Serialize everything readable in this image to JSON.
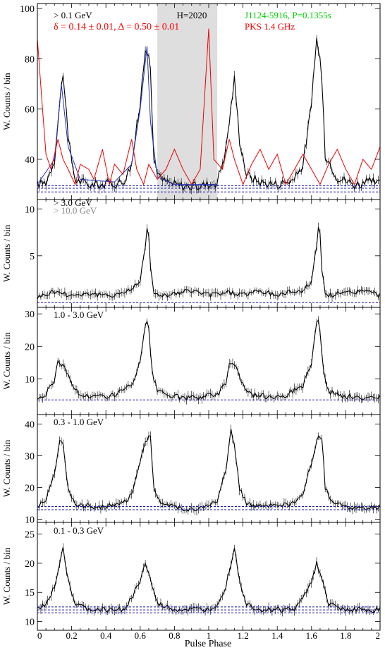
{
  "figure": {
    "x_axis_label": "Pulse Phase",
    "x_ticks": [
      "0",
      "0.2",
      "0.4",
      "0.6",
      "0.8",
      "1",
      "1.2",
      "1.4",
      "1.6",
      "1.8",
      "2"
    ]
  },
  "chart_data": [
    {
      "type": "line",
      "ylabel": "W. Counts / bin",
      "xlim": [
        0,
        2
      ],
      "ylim": [
        24,
        102
      ],
      "yticks": [
        40,
        60,
        80,
        100
      ],
      "ytick_labels": [
        "40",
        "60",
        "80",
        "100"
      ],
      "labels": [
        {
          "text": "> 0.1 GeV",
          "color": "#000000"
        },
        {
          "text": "δ = 0.14 ± 0.01, Δ = 0.50 ± 0.01",
          "color": "#ff0000"
        },
        {
          "text": "H=2020",
          "color": "#000000"
        },
        {
          "text": "J1124-5916, P=0.1355s",
          "color": "#00cc00"
        },
        {
          "text": "PKS 1.4 GHz",
          "color": "#ff0000"
        }
      ],
      "shaded_phase": [
        0.7,
        1.05
      ],
      "background_levels": [
        27,
        28.5,
        29.5
      ],
      "series": [
        {
          "color": "#000000",
          "points": [
            [
              0,
              30
            ],
            [
              0.05,
              31
            ],
            [
              0.1,
              40
            ],
            [
              0.13,
              62
            ],
            [
              0.15,
              75
            ],
            [
              0.18,
              48
            ],
            [
              0.22,
              32
            ],
            [
              0.3,
              30
            ],
            [
              0.4,
              30
            ],
            [
              0.5,
              31
            ],
            [
              0.55,
              38
            ],
            [
              0.6,
              62
            ],
            [
              0.63,
              85
            ],
            [
              0.655,
              82
            ],
            [
              0.68,
              40
            ],
            [
              0.72,
              32
            ],
            [
              0.8,
              30
            ],
            [
              0.9,
              29
            ],
            [
              1,
              30
            ],
            [
              1.05,
              31
            ],
            [
              1.1,
              44
            ],
            [
              1.15,
              72
            ],
            [
              1.18,
              48
            ],
            [
              1.22,
              34
            ],
            [
              1.3,
              31
            ],
            [
              1.4,
              30
            ],
            [
              1.5,
              32
            ],
            [
              1.55,
              38
            ],
            [
              1.6,
              62
            ],
            [
              1.63,
              88
            ],
            [
              1.655,
              78
            ],
            [
              1.68,
              42
            ],
            [
              1.75,
              33
            ],
            [
              1.85,
              30
            ],
            [
              1.95,
              31
            ],
            [
              2,
              30
            ]
          ]
        },
        {
          "color": "#2233bb",
          "points": [
            [
              0,
              30
            ],
            [
              0.1,
              40
            ],
            [
              0.14,
              70
            ],
            [
              0.18,
              45
            ],
            [
              0.25,
              32
            ],
            [
              0.45,
              31
            ],
            [
              0.55,
              38
            ],
            [
              0.6,
              60
            ],
            [
              0.64,
              85
            ],
            [
              0.66,
              55
            ],
            [
              0.7,
              33
            ],
            [
              0.8,
              30
            ],
            [
              1.05,
              30
            ]
          ]
        },
        {
          "color": "#ee0000",
          "points": [
            [
              0,
              88
            ],
            [
              0.03,
              60
            ],
            [
              0.05,
              42
            ],
            [
              0.08,
              36
            ],
            [
              0.12,
              48
            ],
            [
              0.15,
              40
            ],
            [
              0.18,
              36
            ],
            [
              0.22,
              30
            ],
            [
              0.25,
              38
            ],
            [
              0.3,
              36
            ],
            [
              0.33,
              32
            ],
            [
              0.38,
              44
            ],
            [
              0.42,
              30
            ],
            [
              0.45,
              38
            ],
            [
              0.5,
              34
            ],
            [
              0.55,
              48
            ],
            [
              0.58,
              36
            ],
            [
              0.62,
              30
            ],
            [
              0.65,
              38
            ],
            [
              0.7,
              32
            ],
            [
              0.75,
              36
            ],
            [
              0.8,
              44
            ],
            [
              0.85,
              36
            ],
            [
              0.9,
              30
            ],
            [
              0.95,
              36
            ],
            [
              1,
              92
            ],
            [
              1.03,
              40
            ],
            [
              1.08,
              36
            ],
            [
              1.12,
              48
            ],
            [
              1.15,
              40
            ],
            [
              1.2,
              30
            ],
            [
              1.25,
              38
            ],
            [
              1.3,
              44
            ],
            [
              1.35,
              36
            ],
            [
              1.4,
              42
            ],
            [
              1.45,
              30
            ],
            [
              1.5,
              36
            ],
            [
              1.55,
              42
            ],
            [
              1.6,
              36
            ],
            [
              1.65,
              30
            ],
            [
              1.7,
              38
            ],
            [
              1.75,
              44
            ],
            [
              1.8,
              36
            ],
            [
              1.85,
              30
            ],
            [
              1.9,
              40
            ],
            [
              1.95,
              36
            ],
            [
              2,
              45
            ]
          ]
        }
      ]
    },
    {
      "type": "line",
      "ylabel": "W. Counts / bin",
      "xlim": [
        0,
        2
      ],
      "ylim": [
        -0.5,
        11
      ],
      "yticks": [
        5,
        10
      ],
      "ytick_labels": [
        "5",
        "10"
      ],
      "labels": [
        {
          "text": "> 3.0 GeV",
          "color": "#000000"
        },
        {
          "text": "> 10.0 GeV",
          "color": "#888888"
        }
      ],
      "background_levels": [
        0
      ],
      "series": [
        {
          "color": "#000000",
          "points": [
            [
              0,
              0.6
            ],
            [
              0.1,
              1.2
            ],
            [
              0.2,
              0.8
            ],
            [
              0.3,
              1.0
            ],
            [
              0.4,
              0.7
            ],
            [
              0.5,
              1.1
            ],
            [
              0.55,
              1.4
            ],
            [
              0.6,
              2.5
            ],
            [
              0.63,
              6.0
            ],
            [
              0.645,
              9.0
            ],
            [
              0.66,
              4.0
            ],
            [
              0.68,
              0.8
            ],
            [
              0.8,
              0.9
            ],
            [
              0.9,
              1.3
            ],
            [
              1,
              0.8
            ],
            [
              1.1,
              1.1
            ],
            [
              1.2,
              0.9
            ],
            [
              1.3,
              1.2
            ],
            [
              1.4,
              0.8
            ],
            [
              1.5,
              1.3
            ],
            [
              1.55,
              1.2
            ],
            [
              1.6,
              2.4
            ],
            [
              1.63,
              6.2
            ],
            [
              1.645,
              9.0
            ],
            [
              1.66,
              3.5
            ],
            [
              1.68,
              0.8
            ],
            [
              1.8,
              1.0
            ],
            [
              1.9,
              1.3
            ],
            [
              2,
              0.8
            ]
          ]
        }
      ]
    },
    {
      "type": "line",
      "ylabel": "W. Counts / bin",
      "xlim": [
        0,
        2
      ],
      "ylim": [
        -1,
        32
      ],
      "yticks": [
        10,
        20,
        30
      ],
      "ytick_labels": [
        "10",
        "20",
        "30"
      ],
      "labels": [
        {
          "text": "1.0 - 3.0 GeV",
          "color": "#000000"
        }
      ],
      "background_levels": [
        3.5
      ],
      "series": [
        {
          "color": "#000000",
          "points": [
            [
              0,
              4
            ],
            [
              0.05,
              5
            ],
            [
              0.1,
              10
            ],
            [
              0.12,
              15
            ],
            [
              0.16,
              14
            ],
            [
              0.2,
              8
            ],
            [
              0.25,
              5
            ],
            [
              0.35,
              4.5
            ],
            [
              0.45,
              5
            ],
            [
              0.55,
              8
            ],
            [
              0.6,
              15
            ],
            [
              0.63,
              26
            ],
            [
              0.645,
              28
            ],
            [
              0.67,
              12
            ],
            [
              0.7,
              6
            ],
            [
              0.8,
              4.5
            ],
            [
              0.9,
              4
            ],
            [
              1,
              5
            ],
            [
              1.05,
              5
            ],
            [
              1.1,
              9
            ],
            [
              1.12,
              15
            ],
            [
              1.16,
              14
            ],
            [
              1.2,
              8
            ],
            [
              1.25,
              5
            ],
            [
              1.35,
              4.5
            ],
            [
              1.45,
              5
            ],
            [
              1.55,
              8
            ],
            [
              1.6,
              15
            ],
            [
              1.63,
              27
            ],
            [
              1.645,
              28
            ],
            [
              1.67,
              12
            ],
            [
              1.7,
              6
            ],
            [
              1.8,
              4.5
            ],
            [
              1.9,
              4
            ],
            [
              2,
              4.5
            ]
          ]
        }
      ]
    },
    {
      "type": "line",
      "ylabel": "W. Counts / bin",
      "xlim": [
        0,
        2
      ],
      "ylim": [
        9,
        43
      ],
      "yticks": [
        10,
        20,
        30,
        40
      ],
      "ytick_labels": [
        "10",
        "20",
        "30",
        "40"
      ],
      "labels": [
        {
          "text": "0.3 - 1.0 GeV",
          "color": "#000000"
        }
      ],
      "background_levels": [
        13,
        14
      ],
      "series": [
        {
          "color": "#000000",
          "points": [
            [
              0,
              14
            ],
            [
              0.05,
              16
            ],
            [
              0.1,
              25
            ],
            [
              0.13,
              35
            ],
            [
              0.15,
              33
            ],
            [
              0.18,
              20
            ],
            [
              0.22,
              15
            ],
            [
              0.3,
              14
            ],
            [
              0.4,
              14
            ],
            [
              0.5,
              15
            ],
            [
              0.55,
              18
            ],
            [
              0.6,
              28
            ],
            [
              0.63,
              35
            ],
            [
              0.66,
              36
            ],
            [
              0.68,
              20
            ],
            [
              0.72,
              15
            ],
            [
              0.8,
              14
            ],
            [
              0.9,
              13
            ],
            [
              1,
              14
            ],
            [
              1.05,
              16
            ],
            [
              1.1,
              25
            ],
            [
              1.13,
              38
            ],
            [
              1.15,
              33
            ],
            [
              1.18,
              20
            ],
            [
              1.22,
              15
            ],
            [
              1.3,
              14
            ],
            [
              1.4,
              14
            ],
            [
              1.5,
              15
            ],
            [
              1.55,
              18
            ],
            [
              1.6,
              28
            ],
            [
              1.63,
              35
            ],
            [
              1.66,
              36
            ],
            [
              1.68,
              20
            ],
            [
              1.72,
              15
            ],
            [
              1.8,
              14
            ],
            [
              1.9,
              13
            ],
            [
              2,
              14
            ]
          ]
        }
      ]
    },
    {
      "type": "line",
      "ylabel": "W. Counts / bin",
      "xlim": [
        0,
        2
      ],
      "ylim": [
        8.5,
        27
      ],
      "yticks": [
        10,
        15,
        20,
        25
      ],
      "ytick_labels": [
        "10",
        "15",
        "20",
        "25"
      ],
      "labels": [
        {
          "text": "0.1 - 0.3 GeV",
          "color": "#000000"
        }
      ],
      "background_levels": [
        11.5,
        12,
        12.5
      ],
      "series": [
        {
          "color": "#000000",
          "points": [
            [
              0,
              12
            ],
            [
              0.05,
              13
            ],
            [
              0.1,
              16
            ],
            [
              0.13,
              20
            ],
            [
              0.15,
              23
            ],
            [
              0.18,
              17
            ],
            [
              0.22,
              13
            ],
            [
              0.3,
              12
            ],
            [
              0.4,
              12
            ],
            [
              0.5,
              12
            ],
            [
              0.55,
              14
            ],
            [
              0.6,
              17
            ],
            [
              0.63,
              20
            ],
            [
              0.66,
              17
            ],
            [
              0.7,
              13
            ],
            [
              0.8,
              12
            ],
            [
              0.9,
              12
            ],
            [
              1,
              12
            ],
            [
              1.05,
              13
            ],
            [
              1.1,
              16
            ],
            [
              1.13,
              20
            ],
            [
              1.15,
              23
            ],
            [
              1.18,
              17
            ],
            [
              1.22,
              13
            ],
            [
              1.3,
              12
            ],
            [
              1.4,
              12
            ],
            [
              1.5,
              12
            ],
            [
              1.55,
              14
            ],
            [
              1.6,
              17
            ],
            [
              1.63,
              20
            ],
            [
              1.66,
              17
            ],
            [
              1.7,
              13
            ],
            [
              1.8,
              12
            ],
            [
              1.9,
              12
            ],
            [
              2,
              12
            ]
          ]
        }
      ]
    }
  ]
}
